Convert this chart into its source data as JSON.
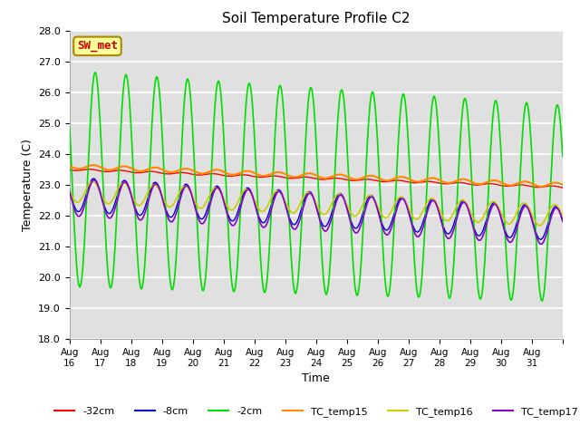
{
  "title": "Soil Temperature Profile C2",
  "xlabel": "Time",
  "ylabel": "Temperature (C)",
  "ylim": [
    18.0,
    28.0
  ],
  "yticks": [
    18.0,
    19.0,
    20.0,
    21.0,
    22.0,
    23.0,
    24.0,
    25.0,
    26.0,
    27.0,
    28.0
  ],
  "xtick_labels": [
    "Aug 16",
    "Aug 17",
    "Aug 18",
    "Aug 19",
    "Aug 20",
    "Aug 21",
    "Aug 22",
    "Aug 23",
    "Aug 24",
    "Aug 25",
    "Aug 26",
    "Aug 27",
    "Aug 28",
    "Aug 29",
    "Aug 30",
    "Aug 31"
  ],
  "annotation_text": "SW_met",
  "annotation_color": "#cc0000",
  "annotation_bg": "#ffff99",
  "annotation_border": "#aa8800",
  "bg_color": "#e0e0e0",
  "grid_color": "#ffffff",
  "colors": {
    "minus32cm": "#ff0000",
    "minus8cm": "#0000cc",
    "minus2cm": "#00dd00",
    "TC_temp15": "#ff8800",
    "TC_temp16": "#cccc00",
    "TC_temp17": "#8800cc"
  },
  "legend_labels": [
    "-32cm",
    "-8cm",
    "-2cm",
    "TC_temp15",
    "TC_temp16",
    "TC_temp17"
  ],
  "n_days": 16,
  "figsize": [
    6.4,
    4.8
  ],
  "dpi": 100
}
